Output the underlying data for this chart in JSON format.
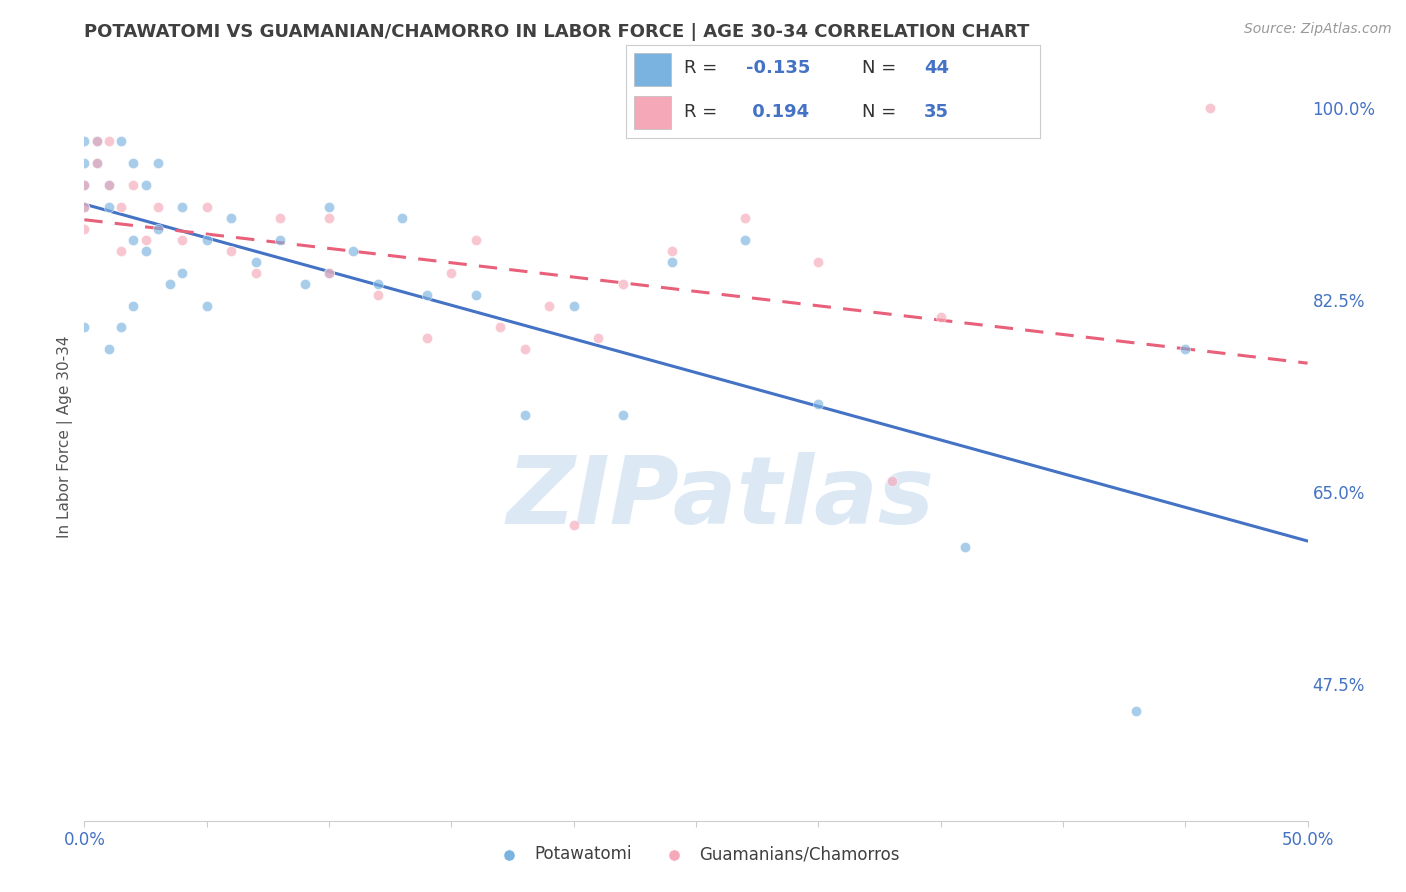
{
  "title": "POTAWATOMI VS GUAMANIAN/CHAMORRO IN LABOR FORCE | AGE 30-34 CORRELATION CHART",
  "source_text": "Source: ZipAtlas.com",
  "ylabel": "In Labor Force | Age 30-34",
  "xlim": [
    0.0,
    0.5
  ],
  "ylim": [
    0.35,
    1.05
  ],
  "xticks": [
    0.0,
    0.05,
    0.1,
    0.15,
    0.2,
    0.25,
    0.3,
    0.35,
    0.4,
    0.45,
    0.5
  ],
  "xticklabels": [
    "0.0%",
    "",
    "",
    "",
    "",
    "",
    "",
    "",
    "",
    "",
    "50.0%"
  ],
  "yticks_right": [
    0.475,
    0.65,
    0.825,
    1.0
  ],
  "ytick_right_labels": [
    "47.5%",
    "65.0%",
    "82.5%",
    "100.0%"
  ],
  "blue_color": "#7ab3e0",
  "pink_color": "#f5a8b8",
  "blue_line_color": "#4472c4",
  "pink_line_color": "#e8607a",
  "watermark_color": "#dce9f5",
  "R_blue": -0.135,
  "N_blue": 44,
  "R_pink": 0.194,
  "N_pink": 35,
  "legend_label_blue": "Potawatomi",
  "legend_label_pink": "Guamanians/Chamorros",
  "blue_scatter_x": [
    0.0,
    0.0,
    0.0,
    0.0,
    0.0,
    0.005,
    0.005,
    0.01,
    0.01,
    0.01,
    0.015,
    0.015,
    0.02,
    0.02,
    0.02,
    0.025,
    0.025,
    0.03,
    0.03,
    0.035,
    0.04,
    0.04,
    0.05,
    0.05,
    0.06,
    0.07,
    0.08,
    0.09,
    0.1,
    0.1,
    0.11,
    0.12,
    0.13,
    0.14,
    0.16,
    0.18,
    0.2,
    0.22,
    0.24,
    0.27,
    0.3,
    0.36,
    0.43,
    0.45
  ],
  "blue_scatter_y": [
    0.97,
    0.95,
    0.93,
    0.91,
    0.8,
    0.97,
    0.95,
    0.93,
    0.91,
    0.78,
    0.97,
    0.8,
    0.95,
    0.88,
    0.82,
    0.93,
    0.87,
    0.95,
    0.89,
    0.84,
    0.91,
    0.85,
    0.88,
    0.82,
    0.9,
    0.86,
    0.88,
    0.84,
    0.91,
    0.85,
    0.87,
    0.84,
    0.9,
    0.83,
    0.83,
    0.72,
    0.82,
    0.72,
    0.86,
    0.88,
    0.73,
    0.6,
    0.45,
    0.78
  ],
  "pink_scatter_x": [
    0.0,
    0.0,
    0.0,
    0.005,
    0.005,
    0.01,
    0.01,
    0.015,
    0.015,
    0.02,
    0.025,
    0.03,
    0.04,
    0.05,
    0.06,
    0.07,
    0.08,
    0.1,
    0.1,
    0.12,
    0.14,
    0.15,
    0.16,
    0.17,
    0.18,
    0.19,
    0.2,
    0.21,
    0.22,
    0.24,
    0.27,
    0.3,
    0.33,
    0.35,
    0.46
  ],
  "pink_scatter_y": [
    0.93,
    0.91,
    0.89,
    0.97,
    0.95,
    0.97,
    0.93,
    0.91,
    0.87,
    0.93,
    0.88,
    0.91,
    0.88,
    0.91,
    0.87,
    0.85,
    0.9,
    0.9,
    0.85,
    0.83,
    0.79,
    0.85,
    0.88,
    0.8,
    0.78,
    0.82,
    0.62,
    0.79,
    0.84,
    0.87,
    0.9,
    0.86,
    0.66,
    0.81,
    1.0
  ],
  "background_color": "#ffffff",
  "grid_color": "#e0e0e0",
  "title_color": "#404040",
  "axis_label_color": "#4472c4",
  "scatter_alpha": 0.65,
  "scatter_size": 55,
  "title_fontsize": 13,
  "source_fontsize": 10,
  "tick_fontsize": 12,
  "ylabel_fontsize": 11
}
